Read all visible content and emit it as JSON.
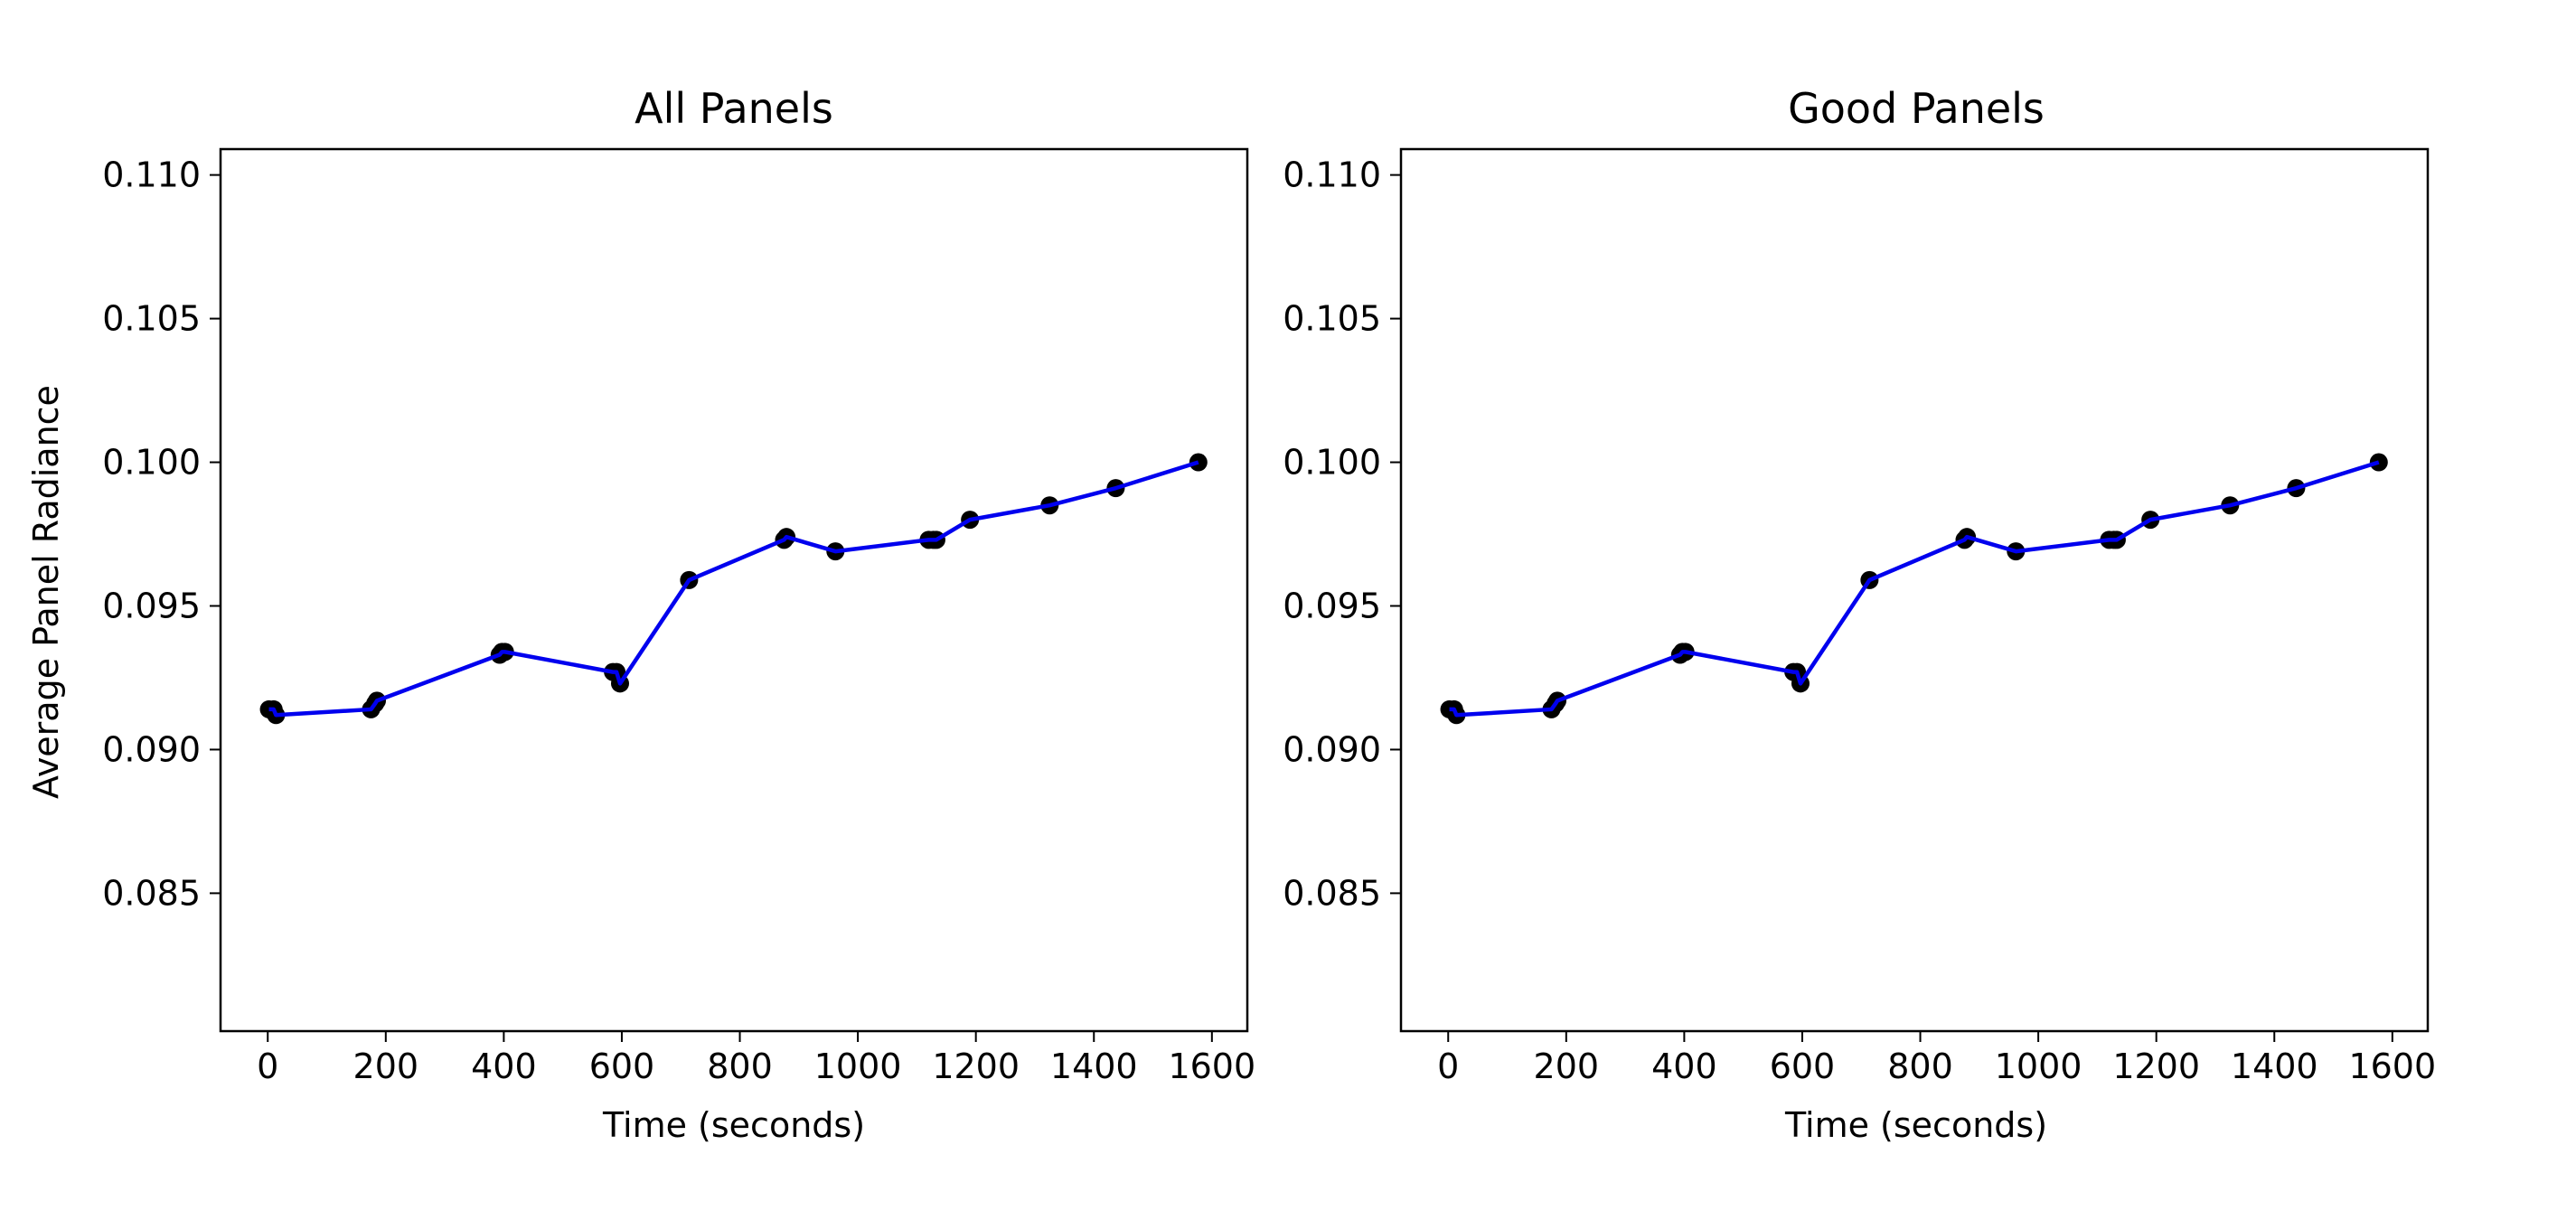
{
  "chart_data": [
    {
      "type": "line",
      "title": "All Panels",
      "xlabel": "Time (seconds)",
      "ylabel": "Average Panel Radiance",
      "xlim": [
        -80,
        1660
      ],
      "ylim": [
        0.0802,
        0.1109
      ],
      "xticks": [
        0,
        200,
        400,
        600,
        800,
        1000,
        1200,
        1400,
        1600
      ],
      "yticks": [
        0.085,
        0.09,
        0.095,
        0.1,
        0.105,
        0.11
      ],
      "xtick_labels": [
        "0",
        "200",
        "400",
        "600",
        "800",
        "1000",
        "1200",
        "1400",
        "1600"
      ],
      "ytick_labels": [
        "0.085",
        "0.090",
        "0.095",
        "0.100",
        "0.105",
        "0.110"
      ],
      "grid": false,
      "series": [
        {
          "color": "#0000ee",
          "marker_color": "#000000",
          "points": [
            [
              2,
              0.0914
            ],
            [
              10,
              0.0914
            ],
            [
              14,
              0.0912
            ],
            [
              175,
              0.0914
            ],
            [
              182,
              0.0916
            ],
            [
              185,
              0.0917
            ],
            [
              393,
              0.0933
            ],
            [
              397,
              0.0934
            ],
            [
              402,
              0.0934
            ],
            [
              585,
              0.0927
            ],
            [
              591,
              0.0927
            ],
            [
              597,
              0.0923
            ],
            [
              714,
              0.0959
            ],
            [
              875,
              0.0973
            ],
            [
              879,
              0.0974
            ],
            [
              962,
              0.0969
            ],
            [
              1120,
              0.0973
            ],
            [
              1128,
              0.0973
            ],
            [
              1133,
              0.0973
            ],
            [
              1190,
              0.098
            ],
            [
              1325,
              0.0985
            ],
            [
              1437,
              0.0991
            ],
            [
              1577,
              0.1
            ]
          ]
        }
      ]
    },
    {
      "type": "line",
      "title": "Good Panels",
      "xlabel": "Time (seconds)",
      "ylabel": "",
      "xlim": [
        -80,
        1660
      ],
      "ylim": [
        0.0802,
        0.1109
      ],
      "xticks": [
        0,
        200,
        400,
        600,
        800,
        1000,
        1200,
        1400,
        1600
      ],
      "yticks": [
        0.085,
        0.09,
        0.095,
        0.1,
        0.105,
        0.11
      ],
      "xtick_labels": [
        "0",
        "200",
        "400",
        "600",
        "800",
        "1000",
        "1200",
        "1400",
        "1600"
      ],
      "ytick_labels": [
        "0.085",
        "0.090",
        "0.095",
        "0.100",
        "0.105",
        "0.110"
      ],
      "grid": false,
      "series": [
        {
          "color": "#0000ee",
          "marker_color": "#000000",
          "points": [
            [
              2,
              0.0914
            ],
            [
              10,
              0.0914
            ],
            [
              14,
              0.0912
            ],
            [
              175,
              0.0914
            ],
            [
              182,
              0.0916
            ],
            [
              185,
              0.0917
            ],
            [
              393,
              0.0933
            ],
            [
              397,
              0.0934
            ],
            [
              402,
              0.0934
            ],
            [
              585,
              0.0927
            ],
            [
              591,
              0.0927
            ],
            [
              597,
              0.0923
            ],
            [
              714,
              0.0959
            ],
            [
              875,
              0.0973
            ],
            [
              879,
              0.0974
            ],
            [
              962,
              0.0969
            ],
            [
              1120,
              0.0973
            ],
            [
              1128,
              0.0973
            ],
            [
              1133,
              0.0973
            ],
            [
              1190,
              0.098
            ],
            [
              1325,
              0.0985
            ],
            [
              1437,
              0.0991
            ],
            [
              1577,
              0.1
            ]
          ]
        }
      ]
    }
  ]
}
